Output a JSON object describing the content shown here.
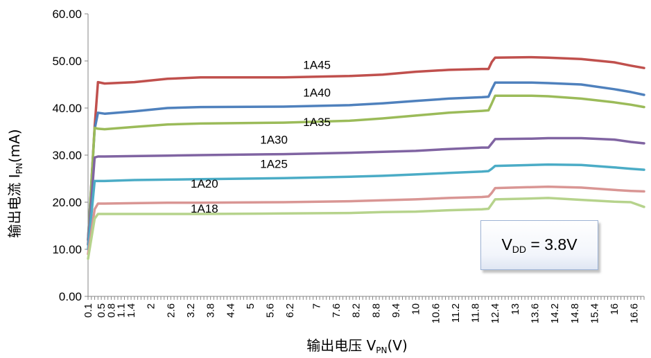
{
  "chart_data": {
    "type": "line",
    "xlabel_main": "输出电压 V",
    "xlabel_sub": "PN",
    "xlabel_unit": "(V)",
    "ylabel_main": "输出电流 I",
    "ylabel_sub": "PN",
    "ylabel_unit": "(mA)",
    "ylim": [
      0,
      60
    ],
    "yticks": [
      "0.00",
      "10.00",
      "20.00",
      "30.00",
      "40.00",
      "50.00",
      "60.00"
    ],
    "xlim": [
      0.1,
      16.9
    ],
    "xticks": [
      "0.1",
      "0.5",
      "0.8",
      "1.1",
      "1.4",
      "2",
      "2.6",
      "3.2",
      "3.8",
      "4.4",
      "5",
      "5.6",
      "6.2",
      "7",
      "7.6",
      "8.2",
      "8.8",
      "9.4",
      "10",
      "10.6",
      "11.2",
      "11.8",
      "12.4",
      "13",
      "13.6",
      "14.2",
      "14.8",
      "15.4",
      "16",
      "16.6"
    ],
    "grid": "none",
    "annotation": {
      "main": "V",
      "sub": "DD",
      "rest": " = 3.8V"
    },
    "series": [
      {
        "name": "1A45",
        "color": "#c0504d",
        "x": [
          0.1,
          0.3,
          0.4,
          0.6,
          1.5,
          2.5,
          3.5,
          6.0,
          8.0,
          9.0,
          10.0,
          11.0,
          12.0,
          12.2,
          12.3,
          12.4,
          13.5,
          14.0,
          15.0,
          16.0,
          16.5,
          16.9
        ],
        "y": [
          12.0,
          36.0,
          45.5,
          45.2,
          45.5,
          46.2,
          46.5,
          46.5,
          46.8,
          47.1,
          47.7,
          48.1,
          48.3,
          48.3,
          49.8,
          50.7,
          50.8,
          50.7,
          50.4,
          49.7,
          49.0,
          48.5
        ]
      },
      {
        "name": "1A40",
        "color": "#4f81bd",
        "x": [
          0.1,
          0.3,
          0.4,
          0.6,
          1.5,
          2.5,
          3.5,
          6.0,
          8.0,
          9.0,
          10.0,
          11.0,
          12.0,
          12.2,
          12.3,
          12.4,
          13.5,
          14.0,
          15.0,
          16.0,
          16.5,
          16.9
        ],
        "y": [
          12.0,
          35.5,
          39.0,
          38.8,
          39.3,
          40.0,
          40.2,
          40.3,
          40.6,
          41.0,
          41.5,
          42.0,
          42.3,
          42.4,
          44.0,
          45.4,
          45.4,
          45.3,
          45.0,
          44.0,
          43.4,
          42.8
        ]
      },
      {
        "name": "1A35",
        "color": "#9bbb59",
        "x": [
          0.1,
          0.3,
          0.4,
          0.6,
          1.5,
          2.5,
          3.5,
          6.0,
          8.0,
          9.0,
          10.0,
          11.0,
          12.0,
          12.2,
          12.3,
          12.4,
          13.5,
          14.0,
          15.0,
          16.0,
          16.5,
          16.9
        ],
        "y": [
          11.0,
          35.8,
          35.6,
          35.5,
          36.0,
          36.5,
          36.7,
          36.9,
          37.3,
          37.8,
          38.4,
          39.0,
          39.4,
          39.5,
          41.0,
          42.6,
          42.6,
          42.5,
          42.0,
          41.2,
          40.7,
          40.2
        ]
      },
      {
        "name": "1A30",
        "color": "#8064a2",
        "x": [
          0.1,
          0.3,
          0.4,
          0.6,
          1.5,
          2.5,
          3.5,
          6.0,
          8.0,
          9.0,
          10.0,
          11.0,
          12.0,
          12.2,
          12.3,
          12.4,
          13.5,
          14.0,
          15.0,
          16.0,
          16.5,
          16.9
        ],
        "y": [
          11.0,
          29.5,
          29.7,
          29.7,
          29.8,
          29.9,
          30.0,
          30.2,
          30.5,
          30.7,
          30.9,
          31.3,
          31.6,
          31.6,
          32.5,
          33.4,
          33.5,
          33.6,
          33.6,
          33.3,
          32.8,
          32.5
        ]
      },
      {
        "name": "1A25",
        "color": "#4bacc6",
        "x": [
          0.1,
          0.3,
          0.4,
          0.6,
          1.5,
          2.5,
          3.5,
          6.0,
          8.0,
          9.0,
          10.0,
          11.0,
          12.0,
          12.2,
          12.3,
          12.4,
          13.5,
          14.0,
          15.0,
          16.0,
          16.5,
          16.9
        ],
        "y": [
          10.0,
          24.5,
          24.5,
          24.5,
          24.7,
          24.8,
          24.9,
          25.1,
          25.4,
          25.6,
          25.9,
          26.2,
          26.5,
          26.6,
          27.1,
          27.7,
          27.9,
          28.0,
          27.9,
          27.4,
          27.1,
          26.9
        ]
      },
      {
        "name": "1A20",
        "color": "#d99694",
        "x": [
          0.1,
          0.3,
          0.4,
          0.6,
          1.5,
          2.5,
          3.5,
          6.0,
          8.0,
          9.0,
          10.0,
          11.0,
          12.0,
          12.2,
          12.3,
          12.4,
          13.5,
          14.0,
          15.0,
          16.0,
          16.5,
          16.9
        ],
        "y": [
          9.0,
          18.5,
          19.7,
          19.7,
          19.8,
          19.9,
          19.9,
          20.0,
          20.2,
          20.4,
          20.6,
          20.9,
          21.1,
          21.2,
          22.0,
          23.0,
          23.2,
          23.3,
          23.1,
          22.6,
          22.4,
          22.3
        ]
      },
      {
        "name": "1A18",
        "color": "#b6d38c",
        "x": [
          0.1,
          0.3,
          0.4,
          0.6,
          1.5,
          2.5,
          3.5,
          6.0,
          8.0,
          9.0,
          10.0,
          11.0,
          12.0,
          12.2,
          12.3,
          12.4,
          13.5,
          14.0,
          15.0,
          16.0,
          16.5,
          16.9
        ],
        "y": [
          8.0,
          16.5,
          17.5,
          17.5,
          17.5,
          17.5,
          17.5,
          17.6,
          17.7,
          17.9,
          18.0,
          18.3,
          18.5,
          18.6,
          19.6,
          20.6,
          20.8,
          20.9,
          20.5,
          20.1,
          20.0,
          19.0
        ]
      }
    ],
    "labels": [
      {
        "text": "1A45",
        "x": 6.6,
        "y": 48.3
      },
      {
        "text": "1A40",
        "x": 6.6,
        "y": 42.4
      },
      {
        "text": "1A35",
        "x": 6.6,
        "y": 36.2
      },
      {
        "text": "1A30",
        "x": 5.3,
        "y": 32.4
      },
      {
        "text": "1A25",
        "x": 5.3,
        "y": 27.3
      },
      {
        "text": "1A20",
        "x": 3.2,
        "y": 23.1
      },
      {
        "text": "1A18",
        "x": 3.2,
        "y": 17.8
      }
    ]
  }
}
